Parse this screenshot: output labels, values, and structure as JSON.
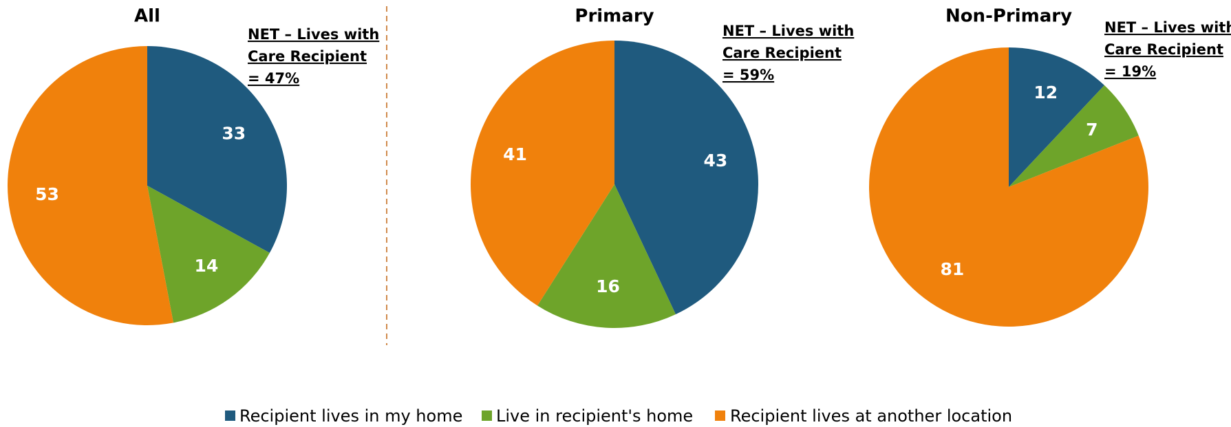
{
  "chart_data": [
    {
      "type": "pie",
      "title": "All",
      "annotation": [
        "NET – Lives with",
        "Care Recipient",
        "= 47%"
      ],
      "categories": [
        "Recipient lives in my home",
        "Live in recipient's home",
        "Recipient lives at another location"
      ],
      "colors": [
        "#1f5a7e",
        "#6ea42a",
        "#f0810c"
      ],
      "values": [
        33,
        14,
        53
      ]
    },
    {
      "type": "pie",
      "title": "Primary",
      "annotation": [
        "NET – Lives with",
        "Care Recipient",
        "= 59%"
      ],
      "categories": [
        "Recipient lives in my home",
        "Live in recipient's home",
        "Recipient lives at another location"
      ],
      "colors": [
        "#1f5a7e",
        "#6ea42a",
        "#f0810c"
      ],
      "values": [
        43,
        16,
        41
      ]
    },
    {
      "type": "pie",
      "title": "Non-Primary",
      "annotation": [
        "NET – Lives with",
        "Care Recipient",
        "= 19%"
      ],
      "categories": [
        "Recipient lives in my home",
        "Live in recipient's home",
        "Recipient lives at another location"
      ],
      "colors": [
        "#1f5a7e",
        "#6ea42a",
        "#f0810c"
      ],
      "values": [
        12,
        7,
        81
      ]
    }
  ]
}
